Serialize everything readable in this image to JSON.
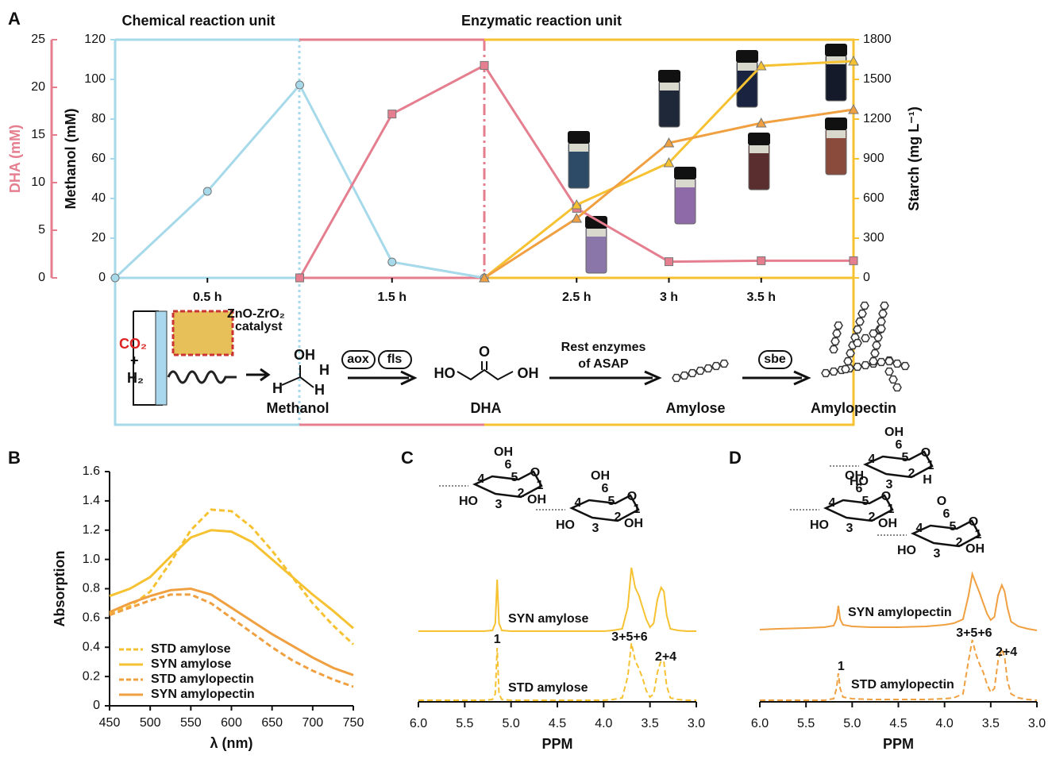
{
  "panels": [
    "A",
    "B",
    "C",
    "D"
  ],
  "chart_data": [
    {
      "type": "line",
      "unit_labels": [
        "Chemical reaction unit",
        "Enzymatic reaction unit"
      ],
      "xlim": [
        0,
        4
      ],
      "xticks": [
        {
          "value": 0.5,
          "label": "0.5 h"
        },
        {
          "value": 1.5,
          "label": "1.5 h"
        },
        {
          "value": 2.5,
          "label": "2.5 h"
        },
        {
          "value": 3,
          "label": "3 h"
        },
        {
          "value": 3.5,
          "label": "3.5 h"
        }
      ],
      "ylabel": "Methanol (mM)",
      "ylim": [
        0,
        120
      ],
      "yticks": [
        0,
        20,
        40,
        60,
        80,
        100,
        120
      ],
      "y2label": "Starch (mg L⁻¹)",
      "y2lim": [
        0,
        1800
      ],
      "y2ticks": [
        0,
        300,
        600,
        900,
        1200,
        1500,
        1800
      ],
      "y3label": "DHA (mM)",
      "y3lim": [
        0,
        25
      ],
      "y3ticks": [
        0,
        5,
        10,
        15,
        20,
        25
      ],
      "y3color": "#e57f8f",
      "series": [
        {
          "color": "#a6d9ea",
          "marker": "circle",
          "axis": "y",
          "x": [
            0,
            0.5,
            1,
            1.5,
            2
          ],
          "values": [
            0,
            43.6,
            97.2,
            8,
            0
          ]
        },
        {
          "color": "#e57f8f",
          "marker": "square",
          "axis": "y3",
          "x": [
            1,
            1.5,
            2,
            2.5,
            3,
            3.5,
            4
          ],
          "values": [
            0,
            17.2,
            22.3,
            7.3,
            1.7,
            1.8,
            1.8
          ]
        },
        {
          "color": "#f6c232",
          "marker": "triangle",
          "axis": "y2",
          "x": [
            2,
            2.5,
            3,
            3.5,
            4
          ],
          "values": [
            0,
            552,
            870,
            1602,
            1638
          ]
        },
        {
          "color": "#f0a040",
          "marker": "triangle",
          "axis": "y2",
          "x": [
            2,
            2.5,
            3,
            3.5,
            4
          ],
          "values": [
            0,
            450,
            1020,
            1170,
            1272
          ]
        }
      ]
    },
    {
      "type": "line",
      "xlabel": "λ (nm)",
      "xlim": [
        450,
        750
      ],
      "xticks": [
        450,
        500,
        550,
        600,
        650,
        700,
        750
      ],
      "ylabel": "Absorption",
      "ylim": [
        0,
        1.6
      ],
      "yticks": [
        0,
        0.2,
        0.4,
        0.6,
        0.8,
        {
          "value": 1,
          "label": "1.0"
        },
        1.2,
        1.4,
        1.6
      ],
      "legend": "lower left",
      "x": [
        450,
        475,
        500,
        525,
        550,
        575,
        600,
        625,
        650,
        675,
        700,
        725,
        750
      ],
      "series": [
        {
          "name": "STD amylose",
          "color": "#f6c232",
          "dashed": true,
          "values": [
            0.63,
            0.68,
            0.78,
            0.98,
            1.2,
            1.34,
            1.33,
            1.22,
            1.06,
            0.88,
            0.7,
            0.55,
            0.42
          ]
        },
        {
          "name": "SYN amylose",
          "color": "#f6c232",
          "dashed": false,
          "values": [
            0.75,
            0.8,
            0.88,
            1.02,
            1.15,
            1.2,
            1.19,
            1.12,
            1.0,
            0.88,
            0.76,
            0.65,
            0.53
          ]
        },
        {
          "name": "STD amylopectin",
          "color": "#f0a040",
          "dashed": true,
          "values": [
            0.62,
            0.67,
            0.72,
            0.76,
            0.76,
            0.7,
            0.6,
            0.5,
            0.4,
            0.31,
            0.24,
            0.18,
            0.13
          ]
        },
        {
          "name": "SYN amylopectin",
          "color": "#f0a040",
          "dashed": false,
          "values": [
            0.64,
            0.7,
            0.75,
            0.79,
            0.8,
            0.76,
            0.67,
            0.58,
            0.49,
            0.41,
            0.33,
            0.26,
            0.21
          ]
        }
      ]
    },
    {
      "type": "spectrum",
      "xlabel": "PPM",
      "xlim": [
        6,
        3
      ],
      "xticks": [
        {
          "value": 6,
          "label": "6.0"
        },
        5.5,
        {
          "value": 5,
          "label": "5.0"
        },
        4.5,
        {
          "value": 4,
          "label": "4.0"
        },
        3.5,
        {
          "value": 3,
          "label": "3.0"
        }
      ],
      "annotations": [
        "1",
        "3+5+6",
        "2+4"
      ],
      "structure": [
        [
          "OH",
          "6",
          "4",
          "5",
          "O",
          "1",
          "HO",
          "3",
          "2",
          "OH"
        ],
        [
          "OH",
          "6",
          "4",
          "5",
          "O",
          "1",
          "HO",
          "3",
          "2",
          "OH"
        ]
      ],
      "x": [
        6.0,
        5.8,
        5.5,
        5.3,
        5.2,
        5.17,
        5.15,
        5.13,
        5.1,
        5.0,
        4.8,
        4.5,
        4.2,
        4.0,
        3.9,
        3.8,
        3.74,
        3.7,
        3.66,
        3.62,
        3.58,
        3.54,
        3.5,
        3.46,
        3.42,
        3.38,
        3.35,
        3.32,
        3.28,
        3.2,
        3.1,
        3.0
      ],
      "series": [
        {
          "name": "SYN amylose",
          "color": "#f6c232",
          "dashed": false,
          "values": [
            0,
            0,
            0,
            0,
            1,
            10,
            65,
            10,
            1,
            0,
            0,
            0,
            0,
            0,
            1,
            3,
            30,
            80,
            55,
            45,
            30,
            15,
            5,
            10,
            40,
            55,
            50,
            20,
            3,
            1,
            0,
            0
          ]
        },
        {
          "name": "STD amylose",
          "color": "#f6c232",
          "dashed": true,
          "values": [
            0,
            0,
            0,
            0,
            1,
            8,
            66,
            8,
            1,
            0,
            0,
            0,
            0,
            0,
            1,
            3,
            30,
            72,
            50,
            40,
            28,
            12,
            4,
            8,
            35,
            50,
            48,
            18,
            3,
            1,
            0,
            0
          ]
        }
      ]
    },
    {
      "type": "spectrum",
      "xlabel": "PPM",
      "xlim": [
        6,
        3
      ],
      "xticks": [
        {
          "value": 6,
          "label": "6.0"
        },
        5.5,
        {
          "value": 5,
          "label": "5.0"
        },
        4.5,
        {
          "value": 4,
          "label": "4.0"
        },
        3.5,
        {
          "value": 3,
          "label": "3.0"
        }
      ],
      "annotations": [
        "1",
        "3+5+6",
        "2+4"
      ],
      "structure": [
        [
          "OH",
          "6",
          "4",
          "5",
          "O",
          "1",
          "HO",
          "3",
          "2",
          "H"
        ],
        [
          "OH",
          "6",
          "4",
          "5",
          "O",
          "1",
          "HO",
          "3",
          "2",
          "OH"
        ],
        [
          "O",
          "6",
          "4",
          "5",
          "O",
          "1",
          "HO",
          "3",
          "2",
          "OH"
        ]
      ],
      "x": [
        6.0,
        5.8,
        5.5,
        5.3,
        5.2,
        5.17,
        5.15,
        5.13,
        5.1,
        5.0,
        4.8,
        4.5,
        4.2,
        4.0,
        3.9,
        3.8,
        3.74,
        3.7,
        3.66,
        3.62,
        3.58,
        3.54,
        3.5,
        3.46,
        3.42,
        3.38,
        3.35,
        3.32,
        3.28,
        3.2,
        3.1,
        3.0
      ],
      "series": [
        {
          "name": "SYN amylopectin",
          "color": "#f0a040",
          "dashed": false,
          "values": [
            2,
            3,
            4,
            5,
            7,
            15,
            32,
            15,
            8,
            6,
            5,
            5,
            6,
            8,
            10,
            15,
            45,
            72,
            60,
            48,
            35,
            22,
            14,
            18,
            45,
            58,
            50,
            30,
            12,
            6,
            3,
            1
          ]
        },
        {
          "name": "STD amylopectin",
          "color": "#f0a040",
          "dashed": true,
          "values": [
            0,
            0,
            0,
            0,
            2,
            15,
            34,
            15,
            4,
            2,
            1,
            1,
            1,
            2,
            3,
            8,
            50,
            76,
            58,
            45,
            35,
            20,
            10,
            15,
            50,
            64,
            55,
            25,
            8,
            3,
            1,
            0
          ]
        }
      ]
    }
  ],
  "scheme": {
    "catalyst": [
      "ZnO-ZrO₂",
      "catalyst"
    ],
    "co2": "CO₂",
    "plus": "+",
    "h2": "H₂",
    "methanol_atoms": [
      "OH",
      "H",
      "H",
      "H"
    ],
    "methanol": "Methanol",
    "enzymes1": [
      "aox",
      "fls"
    ],
    "dha_atoms": [
      "O",
      "HO",
      "OH"
    ],
    "dha": "DHA",
    "enzymes2": [
      "Rest enzymes",
      "of ASAP"
    ],
    "amylose": "Amylose",
    "enzyme3": "sbe",
    "amylopectin": "Amylopectin"
  }
}
